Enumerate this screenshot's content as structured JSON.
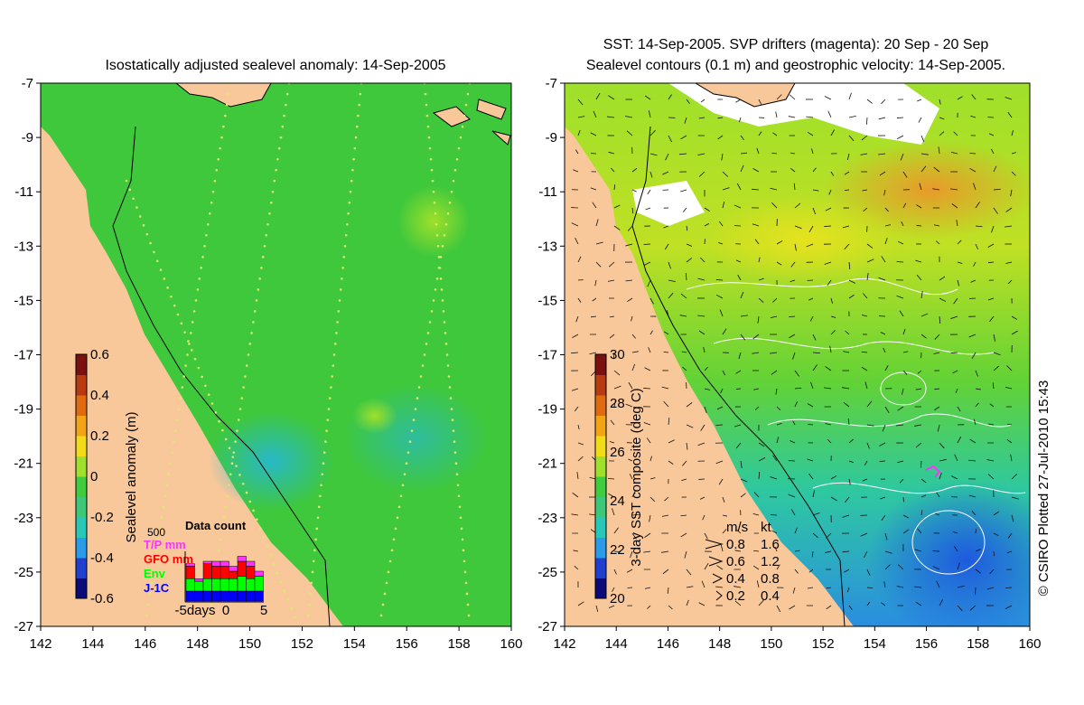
{
  "left_map": {
    "title": "Isostatically adjusted sealevel anomaly: 14-Sep-2005",
    "colorbar": {
      "label": "Sealevel anomaly (m)",
      "ticks": [
        "0.6",
        "0.4",
        "0.2",
        "0",
        "-0.2",
        "-0.4",
        "-0.6"
      ],
      "colors": [
        "#0a0a78",
        "#1f3fd0",
        "#2a9be8",
        "#28c8b8",
        "#3cc878",
        "#3fcc3f",
        "#9ee02c",
        "#f2dc18",
        "#f2a414",
        "#e06a10",
        "#b83a10",
        "#7a1010"
      ]
    },
    "data_count": {
      "title": "Data count",
      "max": "500",
      "legend": [
        {
          "label": "T/P mm",
          "color": "#ff33ff"
        },
        {
          "label": "GFO mm",
          "color": "#ff0000"
        },
        {
          "label": "Env",
          "color": "#00ff00"
        },
        {
          "label": "J-1C",
          "color": "#0000ff"
        }
      ],
      "x_ticks": [
        "-5days",
        "0",
        "5"
      ],
      "bars": [
        {
          "jc": 0.2,
          "env": 0.25,
          "gfo": 0.25,
          "tp": 0.05
        },
        {
          "jc": 0.2,
          "env": 0.2,
          "gfo": 0.0,
          "tp": 0.05
        },
        {
          "jc": 0.2,
          "env": 0.25,
          "gfo": 0.3,
          "tp": 0.05
        },
        {
          "jc": 0.2,
          "env": 0.25,
          "gfo": 0.25,
          "tp": 0.1
        },
        {
          "jc": 0.2,
          "env": 0.25,
          "gfo": 0.25,
          "tp": 0.1
        },
        {
          "jc": 0.2,
          "env": 0.25,
          "gfo": 0.15,
          "tp": 0.1
        },
        {
          "jc": 0.2,
          "env": 0.3,
          "gfo": 0.3,
          "tp": 0.1
        },
        {
          "jc": 0.2,
          "env": 0.25,
          "gfo": 0.25,
          "tp": 0.1
        },
        {
          "jc": 0.2,
          "env": 0.3,
          "gfo": 0.0,
          "tp": 0.1
        }
      ]
    }
  },
  "right_map": {
    "title_line1": "SST: 14-Sep-2005. SVP drifters (magenta): 20 Sep - 20 Sep",
    "title_line2": "Sealevel contours (0.1 m) and geostrophic velocity: 14-Sep-2005.",
    "colorbar": {
      "label": "3-day SST composite (deg C)",
      "ticks": [
        "30",
        "28",
        "26",
        "24",
        "22",
        "20"
      ],
      "colors": [
        "#0a0a78",
        "#1f3fd0",
        "#2a9be8",
        "#28c8b8",
        "#3cc878",
        "#3fcc3f",
        "#9ee02c",
        "#f2dc18",
        "#f2a414",
        "#e06a10",
        "#b83a10",
        "#7a1010"
      ]
    },
    "velocity_legend": {
      "header_ms": "m/s",
      "header_kt": "kt",
      "rows": [
        {
          "ms": "0.8",
          "kt": "1.6"
        },
        {
          "ms": "0.6",
          "kt": "1.2"
        },
        {
          "ms": "0.4",
          "kt": "0.8"
        },
        {
          "ms": "0.2",
          "kt": "0.4"
        }
      ]
    }
  },
  "axes": {
    "x_ticks": [
      "142",
      "144",
      "146",
      "148",
      "150",
      "152",
      "154",
      "156",
      "158",
      "160"
    ],
    "y_ticks": [
      "-7",
      "-9",
      "-11",
      "-13",
      "-15",
      "-17",
      "-19",
      "-21",
      "-23",
      "-25",
      "-27"
    ]
  },
  "colors": {
    "land": "#f9c89a",
    "sea_left": "#3fc83c",
    "sea_right_north": "#7bd82a",
    "cloud": "#ffffff"
  },
  "copyright": "© CSIRO Plotted 27-Jul-2010 15:43"
}
